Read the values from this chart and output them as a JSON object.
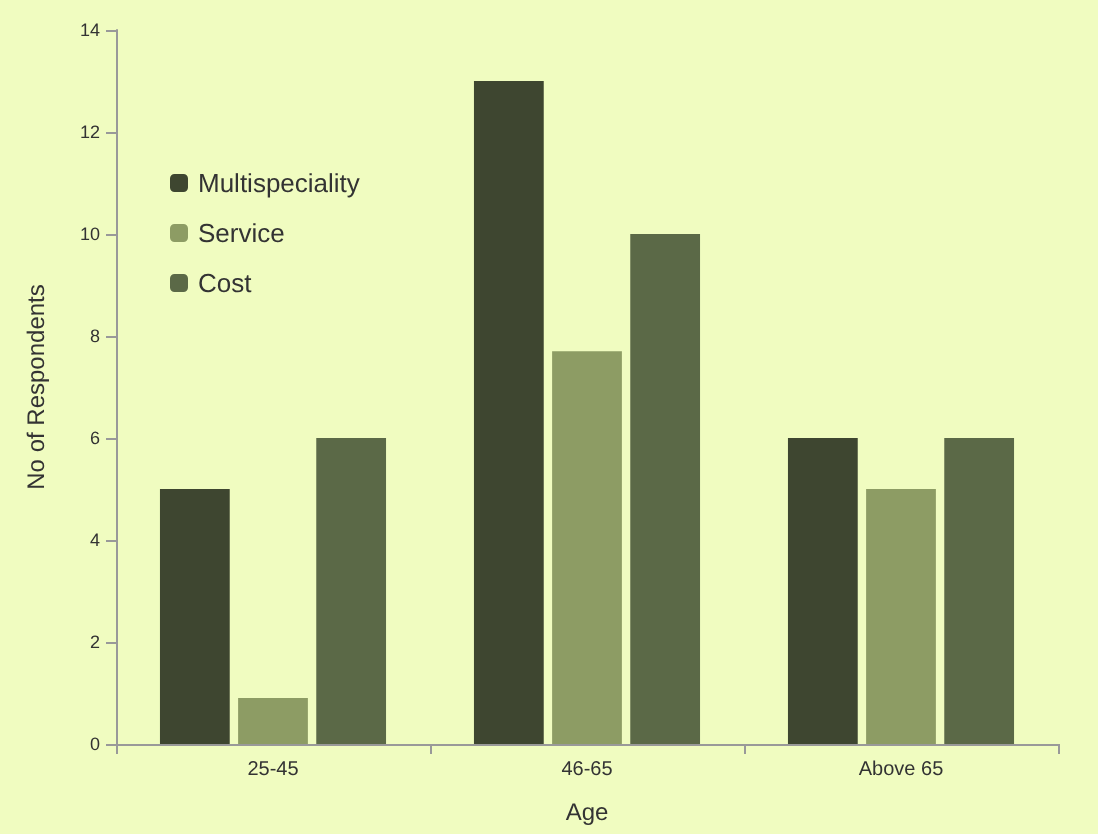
{
  "chart_data": {
    "type": "bar",
    "xlabel": "Age",
    "ylabel": "No of Respondents",
    "categories": [
      "25-45",
      "46-65",
      "Above 65"
    ],
    "series": [
      {
        "name": "Multispeciality",
        "color": "#3e4630",
        "values": [
          5,
          13,
          6
        ]
      },
      {
        "name": "Service",
        "color": "#8d9c64",
        "values": [
          0.9,
          7.7,
          5
        ]
      },
      {
        "name": "Cost",
        "color": "#5b6947",
        "values": [
          6,
          10,
          6
        ]
      }
    ],
    "ylim": [
      0,
      14
    ],
    "yticks": [
      0,
      2,
      4,
      6,
      8,
      10,
      12,
      14
    ],
    "grid": false,
    "legend": "top left"
  }
}
